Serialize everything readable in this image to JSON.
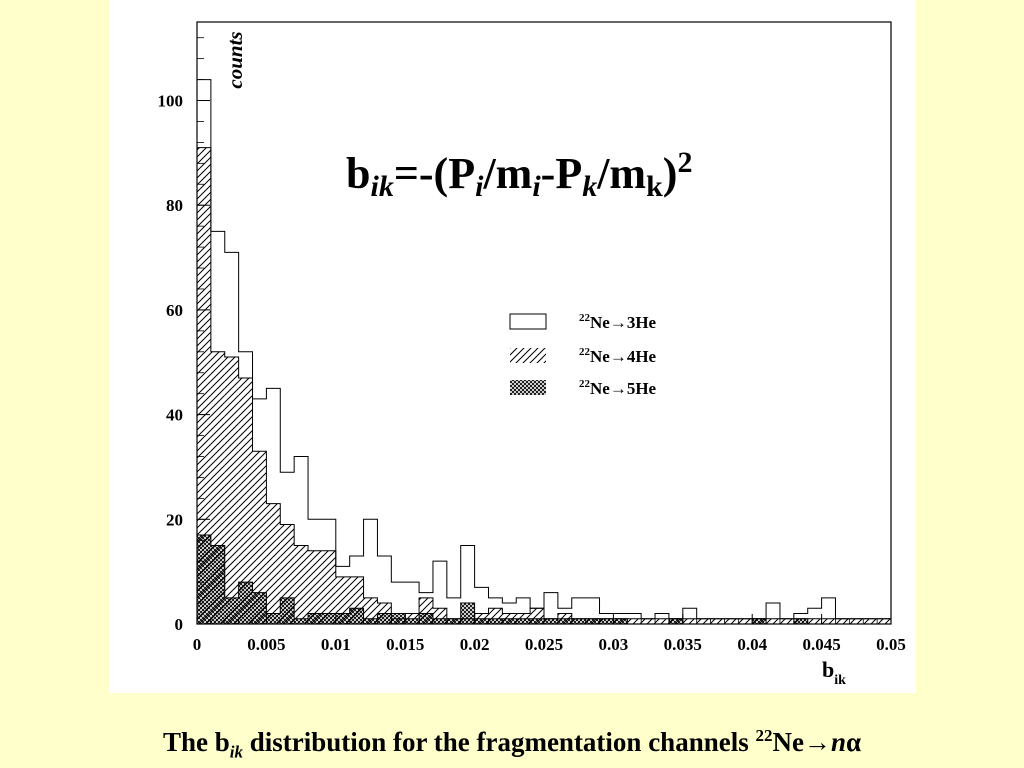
{
  "caption": {
    "prefix": "The b",
    "sub": "ik",
    "middle": " distribution for the fragmentation channels ",
    "sup": "22",
    "suffix_ne": "Ne",
    "arrow": "→",
    "n": "n",
    "alpha": "α"
  },
  "formula": {
    "b": "b",
    "ik": "ik",
    "eq": "=-(P",
    "i1": "i",
    "slash1": "/m",
    "i2": "i",
    "minus": "-P",
    "k1": "k",
    "slash2": "/m",
    "k2": "k",
    "close": ")",
    "pow": "2"
  },
  "y_axis_label": "counts",
  "x_axis_label": {
    "main": "b",
    "sub": "ik"
  },
  "legend": [
    {
      "sup": "22",
      "text": "Ne→3He",
      "fill": "open"
    },
    {
      "sup": "22",
      "text": "Ne→4He",
      "fill": "hatch"
    },
    {
      "sup": "22",
      "text": "Ne→5He",
      "fill": "crosshatch"
    }
  ],
  "chart_data": {
    "type": "histogram",
    "x_range": [
      0,
      0.05
    ],
    "y_range": [
      0,
      115
    ],
    "bin_width": 0.001,
    "x_ticks": [
      0,
      0.005,
      0.01,
      0.015,
      0.02,
      0.025,
      0.03,
      0.035,
      0.04,
      0.045,
      0.05
    ],
    "x_tick_labels": [
      "0",
      "0.005",
      "0.01",
      "0.015",
      "0.02",
      "0.025",
      "0.03",
      "0.035",
      "0.04",
      "0.045",
      "0.05"
    ],
    "y_ticks": [
      0,
      20,
      40,
      60,
      80,
      100
    ],
    "y_tick_labels": [
      "0",
      "20",
      "40",
      "60",
      "80",
      "100"
    ],
    "series": [
      {
        "name": "22Ne→3He",
        "fill": "open",
        "values": [
          104,
          75,
          71,
          52,
          43,
          45,
          29,
          32,
          20,
          20,
          11,
          13,
          20,
          13,
          8,
          8,
          6,
          12,
          5,
          15,
          7,
          5,
          4,
          5,
          3,
          6,
          3,
          5,
          5,
          2,
          2,
          2,
          1,
          2,
          1,
          3,
          1,
          1,
          1,
          1,
          1,
          4,
          1,
          2,
          3,
          5,
          1,
          1,
          1,
          1
        ]
      },
      {
        "name": "22Ne→4He",
        "fill": "hatch",
        "values": [
          91,
          52,
          51,
          47,
          33,
          23,
          19,
          15,
          14,
          14,
          9,
          9,
          5,
          4,
          1,
          2,
          5,
          3,
          1,
          1,
          2,
          3,
          2,
          2,
          3,
          1,
          2,
          1,
          1,
          1,
          1,
          1,
          1,
          1,
          1,
          1,
          1,
          1,
          1,
          1,
          1,
          1,
          1,
          1,
          1,
          1,
          1,
          1,
          1,
          1
        ]
      },
      {
        "name": "22Ne→5He",
        "fill": "crosshatch",
        "values": [
          17,
          15,
          5,
          8,
          6,
          2,
          5,
          1,
          2,
          2,
          2,
          3,
          1,
          2,
          2,
          1,
          2,
          1,
          1,
          4,
          1,
          1,
          1,
          1,
          1,
          1,
          1,
          1,
          1,
          1,
          1,
          0,
          0,
          0,
          1,
          0,
          0,
          0,
          0,
          0,
          1,
          0,
          0,
          1,
          0,
          0,
          0,
          0,
          0,
          0
        ]
      }
    ]
  }
}
